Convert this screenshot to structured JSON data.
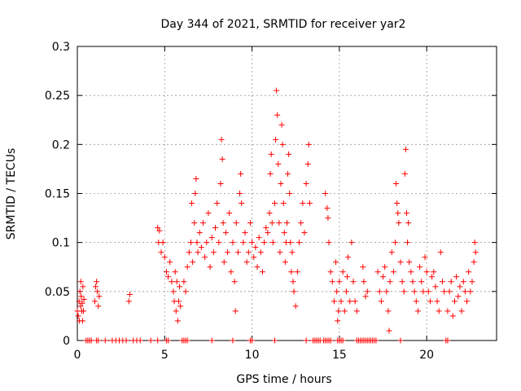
{
  "chart_data": {
    "type": "scatter",
    "title": "Day 344 of 2021, SRMTID for receiver yar2",
    "xlabel": "GPS time / hours",
    "ylabel": "SRMTID / TECUs",
    "xlim": [
      0,
      24
    ],
    "ylim": [
      0,
      0.3
    ],
    "xticks": [
      0,
      5,
      10,
      15,
      20
    ],
    "xtick_labels": [
      "0",
      "5",
      "10",
      "15",
      "20"
    ],
    "yticks": [
      0,
      0.05,
      0.1,
      0.15,
      0.2,
      0.25,
      0.3
    ],
    "ytick_labels": [
      "0",
      "0.05",
      "0.1",
      "0.15",
      "0.2",
      "0.25",
      "0.3"
    ],
    "grid": true,
    "marker": "+",
    "series": [
      {
        "name": "SRMTID",
        "color": "#ff0000",
        "points": [
          [
            0.0,
            0.03
          ],
          [
            0.05,
            0.025
          ],
          [
            0.1,
            0.04
          ],
          [
            0.12,
            0.02
          ],
          [
            0.15,
            0.05
          ],
          [
            0.18,
            0.035
          ],
          [
            0.2,
            0.06
          ],
          [
            0.22,
            0.045
          ],
          [
            0.25,
            0.03
          ],
          [
            0.28,
            0.038
          ],
          [
            0.3,
            0.02
          ],
          [
            0.32,
            0.055
          ],
          [
            0.35,
            0.03
          ],
          [
            0.38,
            0.042
          ],
          [
            1.0,
            0.04
          ],
          [
            1.05,
            0.055
          ],
          [
            1.1,
            0.06
          ],
          [
            1.15,
            0.05
          ],
          [
            1.2,
            0.035
          ],
          [
            1.25,
            0.045
          ],
          [
            2.95,
            0.04
          ],
          [
            3.0,
            0.047
          ],
          [
            4.6,
            0.115
          ],
          [
            4.65,
            0.1
          ],
          [
            4.7,
            0.112
          ],
          [
            4.8,
            0.09
          ],
          [
            4.9,
            0.1
          ],
          [
            5.0,
            0.085
          ],
          [
            5.1,
            0.07
          ],
          [
            5.2,
            0.065
          ],
          [
            5.3,
            0.08
          ],
          [
            5.4,
            0.06
          ],
          [
            5.5,
            0.05
          ],
          [
            5.55,
            0.04
          ],
          [
            5.6,
            0.07
          ],
          [
            5.65,
            0.03
          ],
          [
            5.7,
            0.06
          ],
          [
            5.75,
            0.02
          ],
          [
            5.8,
            0.04
          ],
          [
            5.85,
            0.055
          ],
          [
            5.9,
            0.035
          ],
          [
            6.1,
            0.06
          ],
          [
            6.2,
            0.05
          ],
          [
            6.3,
            0.075
          ],
          [
            6.4,
            0.09
          ],
          [
            6.5,
            0.1
          ],
          [
            6.55,
            0.14
          ],
          [
            6.6,
            0.08
          ],
          [
            6.7,
            0.12
          ],
          [
            6.75,
            0.15
          ],
          [
            6.8,
            0.165
          ],
          [
            6.85,
            0.1
          ],
          [
            6.9,
            0.09
          ],
          [
            7.0,
            0.11
          ],
          [
            7.1,
            0.095
          ],
          [
            7.2,
            0.12
          ],
          [
            7.3,
            0.085
          ],
          [
            7.4,
            0.1
          ],
          [
            7.5,
            0.13
          ],
          [
            7.6,
            0.075
          ],
          [
            7.7,
            0.105
          ],
          [
            7.8,
            0.09
          ],
          [
            7.9,
            0.115
          ],
          [
            8.0,
            0.14
          ],
          [
            8.1,
            0.1
          ],
          [
            8.2,
            0.16
          ],
          [
            8.25,
            0.205
          ],
          [
            8.3,
            0.185
          ],
          [
            8.35,
            0.12
          ],
          [
            8.4,
            0.08
          ],
          [
            8.5,
            0.11
          ],
          [
            8.6,
            0.09
          ],
          [
            8.7,
            0.13
          ],
          [
            8.8,
            0.07
          ],
          [
            8.9,
            0.1
          ],
          [
            9.0,
            0.06
          ],
          [
            9.05,
            0.03
          ],
          [
            9.1,
            0.12
          ],
          [
            9.2,
            0.09
          ],
          [
            9.3,
            0.15
          ],
          [
            9.35,
            0.17
          ],
          [
            9.4,
            0.14
          ],
          [
            9.5,
            0.1
          ],
          [
            9.6,
            0.11
          ],
          [
            9.7,
            0.08
          ],
          [
            9.8,
            0.09
          ],
          [
            9.9,
            0.12
          ],
          [
            10.0,
            0.1
          ],
          [
            10.1,
            0.085
          ],
          [
            10.2,
            0.095
          ],
          [
            10.3,
            0.075
          ],
          [
            10.4,
            0.105
          ],
          [
            10.5,
            0.09
          ],
          [
            10.6,
            0.07
          ],
          [
            10.7,
            0.1
          ],
          [
            10.8,
            0.115
          ],
          [
            10.9,
            0.11
          ],
          [
            11.0,
            0.13
          ],
          [
            11.05,
            0.17
          ],
          [
            11.1,
            0.19
          ],
          [
            11.15,
            0.12
          ],
          [
            11.2,
            0.1
          ],
          [
            11.3,
            0.14
          ],
          [
            11.35,
            0.205
          ],
          [
            11.4,
            0.255
          ],
          [
            11.45,
            0.23
          ],
          [
            11.5,
            0.18
          ],
          [
            11.55,
            0.12
          ],
          [
            11.6,
            0.09
          ],
          [
            11.65,
            0.16
          ],
          [
            11.7,
            0.22
          ],
          [
            11.75,
            0.2
          ],
          [
            11.8,
            0.14
          ],
          [
            11.85,
            0.11
          ],
          [
            11.9,
            0.08
          ],
          [
            11.95,
            0.1
          ],
          [
            12.0,
            0.12
          ],
          [
            12.05,
            0.17
          ],
          [
            12.1,
            0.19
          ],
          [
            12.15,
            0.15
          ],
          [
            12.2,
            0.1
          ],
          [
            12.25,
            0.07
          ],
          [
            12.3,
            0.09
          ],
          [
            12.35,
            0.06
          ],
          [
            12.4,
            0.05
          ],
          [
            12.5,
            0.035
          ],
          [
            12.6,
            0.07
          ],
          [
            12.7,
            0.1
          ],
          [
            12.8,
            0.12
          ],
          [
            12.9,
            0.14
          ],
          [
            13.0,
            0.11
          ],
          [
            13.1,
            0.16
          ],
          [
            13.2,
            0.18
          ],
          [
            13.25,
            0.2
          ],
          [
            13.3,
            0.14
          ],
          [
            14.2,
            0.15
          ],
          [
            14.3,
            0.135
          ],
          [
            14.35,
            0.125
          ],
          [
            14.4,
            0.1
          ],
          [
            14.5,
            0.07
          ],
          [
            14.6,
            0.06
          ],
          [
            14.7,
            0.04
          ],
          [
            14.8,
            0.08
          ],
          [
            14.85,
            0.05
          ],
          [
            14.9,
            0.02
          ],
          [
            14.95,
            0.03
          ],
          [
            15.0,
            0.06
          ],
          [
            15.1,
            0.04
          ],
          [
            15.2,
            0.07
          ],
          [
            15.3,
            0.03
          ],
          [
            15.4,
            0.05
          ],
          [
            15.45,
            0.065
          ],
          [
            15.5,
            0.085
          ],
          [
            15.6,
            0.04
          ],
          [
            15.7,
            0.1
          ],
          [
            15.8,
            0.06
          ],
          [
            15.9,
            0.04
          ],
          [
            16.0,
            0.03
          ],
          [
            16.35,
            0.075
          ],
          [
            16.4,
            0.06
          ],
          [
            16.5,
            0.045
          ],
          [
            16.6,
            0.05
          ],
          [
            17.2,
            0.07
          ],
          [
            17.3,
            0.05
          ],
          [
            17.4,
            0.04
          ],
          [
            17.5,
            0.065
          ],
          [
            17.6,
            0.075
          ],
          [
            17.7,
            0.05
          ],
          [
            17.8,
            0.03
          ],
          [
            17.85,
            0.01
          ],
          [
            17.9,
            0.06
          ],
          [
            18.0,
            0.09
          ],
          [
            18.1,
            0.07
          ],
          [
            18.2,
            0.1
          ],
          [
            18.25,
            0.16
          ],
          [
            18.3,
            0.14
          ],
          [
            18.35,
            0.13
          ],
          [
            18.4,
            0.12
          ],
          [
            18.5,
            0.08
          ],
          [
            18.6,
            0.06
          ],
          [
            18.7,
            0.05
          ],
          [
            18.75,
            0.17
          ],
          [
            18.8,
            0.195
          ],
          [
            18.85,
            0.13
          ],
          [
            18.9,
            0.1
          ],
          [
            18.95,
            0.12
          ],
          [
            19.0,
            0.08
          ],
          [
            19.1,
            0.07
          ],
          [
            19.2,
            0.06
          ],
          [
            19.3,
            0.05
          ],
          [
            19.4,
            0.04
          ],
          [
            19.5,
            0.03
          ],
          [
            19.6,
            0.075
          ],
          [
            19.7,
            0.06
          ],
          [
            19.8,
            0.05
          ],
          [
            19.9,
            0.085
          ],
          [
            20.0,
            0.07
          ],
          [
            20.1,
            0.05
          ],
          [
            20.2,
            0.04
          ],
          [
            20.3,
            0.065
          ],
          [
            20.4,
            0.07
          ],
          [
            20.5,
            0.055
          ],
          [
            20.6,
            0.04
          ],
          [
            20.7,
            0.03
          ],
          [
            20.8,
            0.09
          ],
          [
            20.9,
            0.06
          ],
          [
            21.0,
            0.05
          ],
          [
            21.2,
            0.03
          ],
          [
            21.3,
            0.05
          ],
          [
            21.4,
            0.06
          ],
          [
            21.5,
            0.025
          ],
          [
            21.6,
            0.04
          ],
          [
            21.7,
            0.065
          ],
          [
            21.8,
            0.045
          ],
          [
            21.9,
            0.055
          ],
          [
            22.0,
            0.03
          ],
          [
            22.1,
            0.06
          ],
          [
            22.2,
            0.05
          ],
          [
            22.3,
            0.04
          ],
          [
            22.4,
            0.07
          ],
          [
            22.5,
            0.05
          ],
          [
            22.6,
            0.06
          ],
          [
            22.7,
            0.08
          ],
          [
            22.75,
            0.1
          ],
          [
            22.8,
            0.09
          ]
        ],
        "zero_points": [
          0.5,
          0.6,
          0.7,
          0.8,
          1.1,
          1.2,
          1.6,
          2.0,
          2.2,
          2.4,
          2.6,
          2.8,
          3.2,
          3.4,
          3.6,
          4.2,
          4.6,
          5.1,
          5.2,
          6.0,
          6.1,
          6.2,
          6.3,
          7.7,
          8.9,
          9.9,
          10.0,
          11.3,
          13.1,
          13.5,
          13.6,
          13.7,
          13.8,
          13.9,
          14.1,
          14.2,
          14.3,
          14.4,
          14.5,
          14.9,
          15.0,
          15.1,
          15.2,
          16.0,
          16.1,
          16.2,
          16.3,
          16.4,
          16.5,
          16.6,
          16.7,
          16.8,
          16.9,
          17.0,
          17.1,
          18.5,
          21.1,
          21.2
        ]
      }
    ]
  }
}
